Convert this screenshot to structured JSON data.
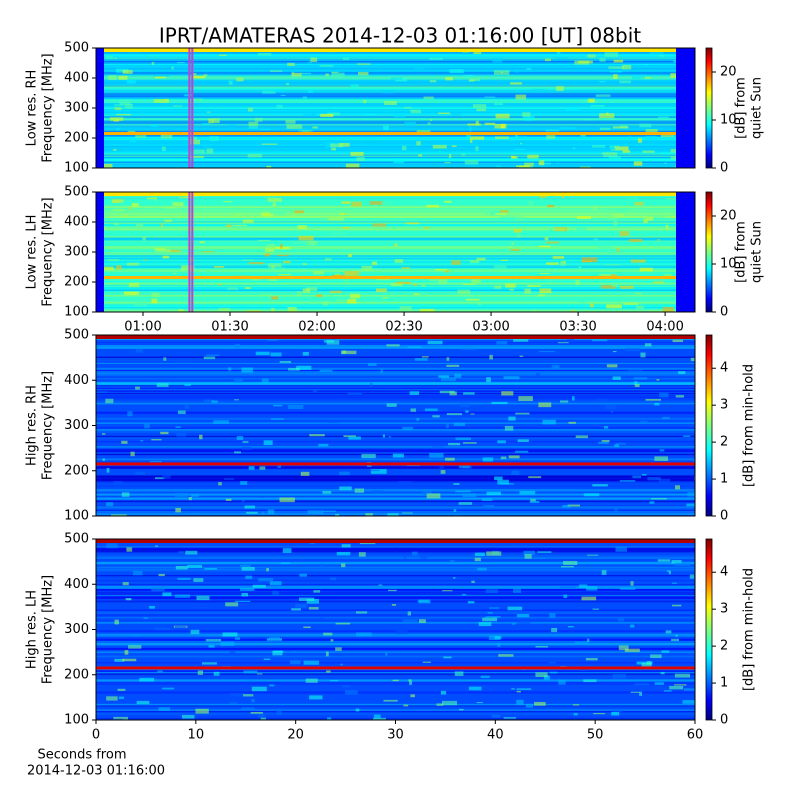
{
  "chart_data": [
    {
      "type": "heatmap",
      "title": "IPRT/AMATERAS 2014-12-03 01:16:00 [UT]   08bit",
      "ylabel": [
        "Low res. RH",
        "Frequency [MHz]"
      ],
      "ylim": [
        100,
        500
      ],
      "yticks": [
        100,
        200,
        300,
        400,
        500
      ],
      "xlim": [
        43.8,
        250.3
      ],
      "span": [
        76,
        77
      ],
      "span_color": "#c040d0",
      "colormap": "jet",
      "clim": [
        0,
        25
      ],
      "cticks": [
        0,
        10,
        20
      ],
      "colorbar_label": [
        "[dB] from",
        "quiet Sun"
      ]
    },
    {
      "type": "heatmap",
      "ylabel": [
        "Low res. LH",
        "Frequency [MHz]"
      ],
      "ylim": [
        100,
        500
      ],
      "yticks": [
        100,
        200,
        300,
        400,
        500
      ],
      "xlim": [
        43.8,
        250.3
      ],
      "xticks": [
        {
          "value": 60,
          "label": "01:00"
        },
        {
          "value": 90,
          "label": "01:30"
        },
        {
          "value": 120,
          "label": "02:00"
        },
        {
          "value": 150,
          "label": "02:30"
        },
        {
          "value": 180,
          "label": "03:00"
        },
        {
          "value": 210,
          "label": "03:30"
        },
        {
          "value": 240,
          "label": "04:00"
        }
      ],
      "span": [
        76,
        77
      ],
      "span_color": "#c040d0",
      "colormap": "jet",
      "clim": [
        0,
        25
      ],
      "cticks": [
        0,
        10,
        20
      ],
      "colorbar_label": [
        "[dB] from",
        "quiet Sun"
      ]
    },
    {
      "type": "heatmap",
      "ylabel": [
        "High res. RH",
        "Frequency [MHz]"
      ],
      "ylim": [
        100,
        500
      ],
      "yticks": [
        100,
        200,
        300,
        400,
        500
      ],
      "xlim": [
        0,
        60
      ],
      "colormap": "jet",
      "clim": [
        0,
        4.9
      ],
      "cticks": [
        0,
        1,
        2,
        3,
        4
      ],
      "colorbar_label": [
        "[dB] from min-hold"
      ]
    },
    {
      "type": "heatmap",
      "ylabel": [
        "High res. LH",
        "Frequency [MHz]"
      ],
      "ylim": [
        100,
        500
      ],
      "yticks": [
        100,
        200,
        300,
        400,
        500
      ],
      "xlim": [
        0,
        60
      ],
      "xticks": [
        0,
        10,
        20,
        30,
        40,
        50,
        60
      ],
      "xlabel": [
        "Seconds from",
        "2014-12-03 01:16:00"
      ],
      "colormap": "jet",
      "clim": [
        0,
        4.9
      ],
      "cticks": [
        0,
        1,
        2,
        3,
        4
      ],
      "colorbar_label": [
        "[dB] from min-hold"
      ]
    }
  ]
}
